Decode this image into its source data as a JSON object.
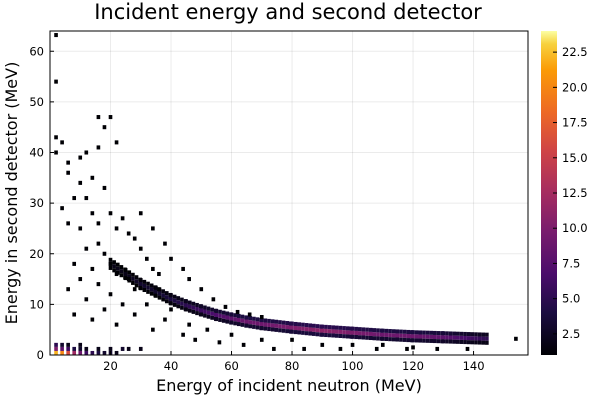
{
  "chart_data": {
    "type": "heatmap",
    "title": "Incident energy and second detector",
    "xlabel": "Energy of incident neutron (MeV)",
    "ylabel": "Energy in second detector (MeV)",
    "xlim": [
      0,
      158
    ],
    "ylim": [
      0,
      64
    ],
    "xticks": [
      20,
      40,
      60,
      80,
      100,
      120,
      140
    ],
    "yticks": [
      0,
      10,
      20,
      30,
      40,
      50,
      60
    ],
    "grid": true,
    "colormap": "inferno",
    "colorbar": {
      "range": [
        1,
        24
      ],
      "ticks": [
        2.5,
        5.0,
        7.5,
        10.0,
        12.5,
        15.0,
        17.5,
        20.0,
        22.5
      ],
      "tick_labels": [
        "2.5",
        "5.0",
        "7.5",
        "10.0",
        "12.5",
        "15.0",
        "17.5",
        "20.0",
        "22.5"
      ]
    },
    "bin_width": {
      "x": 1.2,
      "y": 0.8
    },
    "band": {
      "description_points_x": [
        20,
        25,
        30,
        35,
        40,
        45,
        50,
        55,
        60,
        65,
        70,
        80,
        90,
        100,
        110,
        120,
        130,
        145
      ],
      "description_points_y": [
        18,
        16,
        14,
        12.5,
        11,
        9.8,
        8.8,
        7.9,
        7.2,
        6.6,
        6.1,
        5.4,
        4.8,
        4.4,
        4.0,
        3.7,
        3.5,
        3.2
      ],
      "peak_counts": [
        2,
        2,
        3,
        3,
        4,
        5,
        6,
        7,
        8,
        9,
        9,
        10,
        11,
        10,
        9,
        9,
        8,
        5
      ]
    },
    "bins": [
      [
        2,
        0.4,
        22
      ],
      [
        4,
        0.4,
        20
      ],
      [
        6,
        0.4,
        16
      ],
      [
        8,
        0.4,
        12
      ],
      [
        10,
        0.4,
        9
      ],
      [
        12,
        0.4,
        6
      ],
      [
        14,
        0.4,
        5
      ],
      [
        16,
        0.4,
        4
      ],
      [
        18,
        0.4,
        3
      ],
      [
        20,
        0.4,
        3
      ],
      [
        22,
        0.4,
        2
      ],
      [
        2,
        1.2,
        10
      ],
      [
        4,
        1.2,
        8
      ],
      [
        6,
        1.2,
        6
      ],
      [
        8,
        1.2,
        4
      ],
      [
        10,
        1.2,
        3
      ],
      [
        12,
        1.2,
        2
      ],
      [
        16,
        1.2,
        2
      ],
      [
        20,
        1.2,
        2
      ],
      [
        24,
        1.2,
        3
      ],
      [
        26,
        1.2,
        2
      ],
      [
        30,
        1.2,
        2
      ],
      [
        2,
        2.0,
        5
      ],
      [
        4,
        2.0,
        3
      ],
      [
        6,
        2.0,
        2
      ],
      [
        10,
        2.0,
        2
      ],
      [
        2,
        63.2,
        1
      ],
      [
        2,
        54,
        1
      ],
      [
        2,
        43,
        1
      ],
      [
        2,
        40,
        1
      ],
      [
        4,
        42,
        1
      ],
      [
        6,
        38,
        1
      ],
      [
        6,
        36,
        1
      ],
      [
        10,
        39,
        1
      ],
      [
        10,
        34,
        1
      ],
      [
        14,
        35,
        1
      ],
      [
        12,
        31,
        1
      ],
      [
        18,
        33,
        1
      ],
      [
        20,
        28,
        1
      ],
      [
        8,
        31,
        1
      ],
      [
        4,
        29,
        1
      ],
      [
        14,
        28,
        1
      ],
      [
        16,
        26,
        1
      ],
      [
        22,
        25,
        1
      ],
      [
        26,
        24,
        1
      ],
      [
        30,
        21,
        1
      ],
      [
        28,
        23,
        1
      ],
      [
        24,
        27,
        1
      ],
      [
        10,
        25,
        1
      ],
      [
        6,
        26,
        1
      ],
      [
        16,
        22,
        1
      ],
      [
        18,
        20,
        1
      ],
      [
        32,
        19,
        1
      ],
      [
        34,
        17,
        1
      ],
      [
        36,
        16,
        1
      ],
      [
        12,
        21,
        1
      ],
      [
        20,
        18,
        1
      ],
      [
        8,
        18,
        1
      ],
      [
        14,
        17,
        1
      ],
      [
        22,
        16,
        1
      ],
      [
        26,
        15,
        1
      ],
      [
        10,
        15,
        1
      ],
      [
        16,
        14,
        1
      ],
      [
        28,
        13,
        1
      ],
      [
        36,
        13,
        1
      ],
      [
        20,
        12,
        1
      ],
      [
        6,
        13,
        1
      ],
      [
        12,
        11,
        1
      ],
      [
        24,
        10,
        1
      ],
      [
        32,
        10,
        1
      ],
      [
        40,
        9,
        1
      ],
      [
        18,
        9,
        1
      ],
      [
        8,
        8,
        1
      ],
      [
        28,
        8,
        1
      ],
      [
        38,
        7,
        1
      ],
      [
        46,
        6,
        1
      ],
      [
        14,
        7,
        1
      ],
      [
        22,
        6,
        1
      ],
      [
        52,
        5,
        1
      ],
      [
        60,
        4,
        1
      ],
      [
        34,
        5,
        1
      ],
      [
        44,
        4,
        1
      ],
      [
        70,
        3,
        1
      ],
      [
        80,
        3,
        1
      ],
      [
        90,
        2,
        1
      ],
      [
        100,
        2,
        1
      ],
      [
        110,
        2,
        1
      ],
      [
        120,
        1.5,
        1
      ],
      [
        64,
        2,
        1
      ],
      [
        74,
        1.2,
        1
      ],
      [
        84,
        1.2,
        1
      ],
      [
        96,
        1.2,
        1
      ],
      [
        108,
        1.2,
        1
      ],
      [
        118,
        1.2,
        1
      ],
      [
        128,
        1.2,
        1
      ],
      [
        138,
        1.2,
        1
      ],
      [
        56,
        2.5,
        1
      ],
      [
        48,
        3,
        1
      ],
      [
        154,
        3.2,
        1
      ],
      [
        16,
        47,
        1
      ],
      [
        20,
        47,
        1
      ],
      [
        18,
        45,
        1
      ],
      [
        16,
        41,
        1
      ],
      [
        22,
        42,
        1
      ],
      [
        12,
        40,
        1
      ],
      [
        30,
        28,
        1
      ],
      [
        34,
        25,
        1
      ],
      [
        38,
        22,
        1
      ],
      [
        40,
        19,
        1
      ],
      [
        44,
        17,
        1
      ],
      [
        46,
        15,
        1
      ],
      [
        50,
        13,
        1
      ],
      [
        54,
        11,
        1
      ],
      [
        58,
        9.5,
        1
      ],
      [
        62,
        8.5,
        1
      ],
      [
        66,
        8,
        1
      ],
      [
        70,
        7.5,
        1
      ]
    ]
  }
}
